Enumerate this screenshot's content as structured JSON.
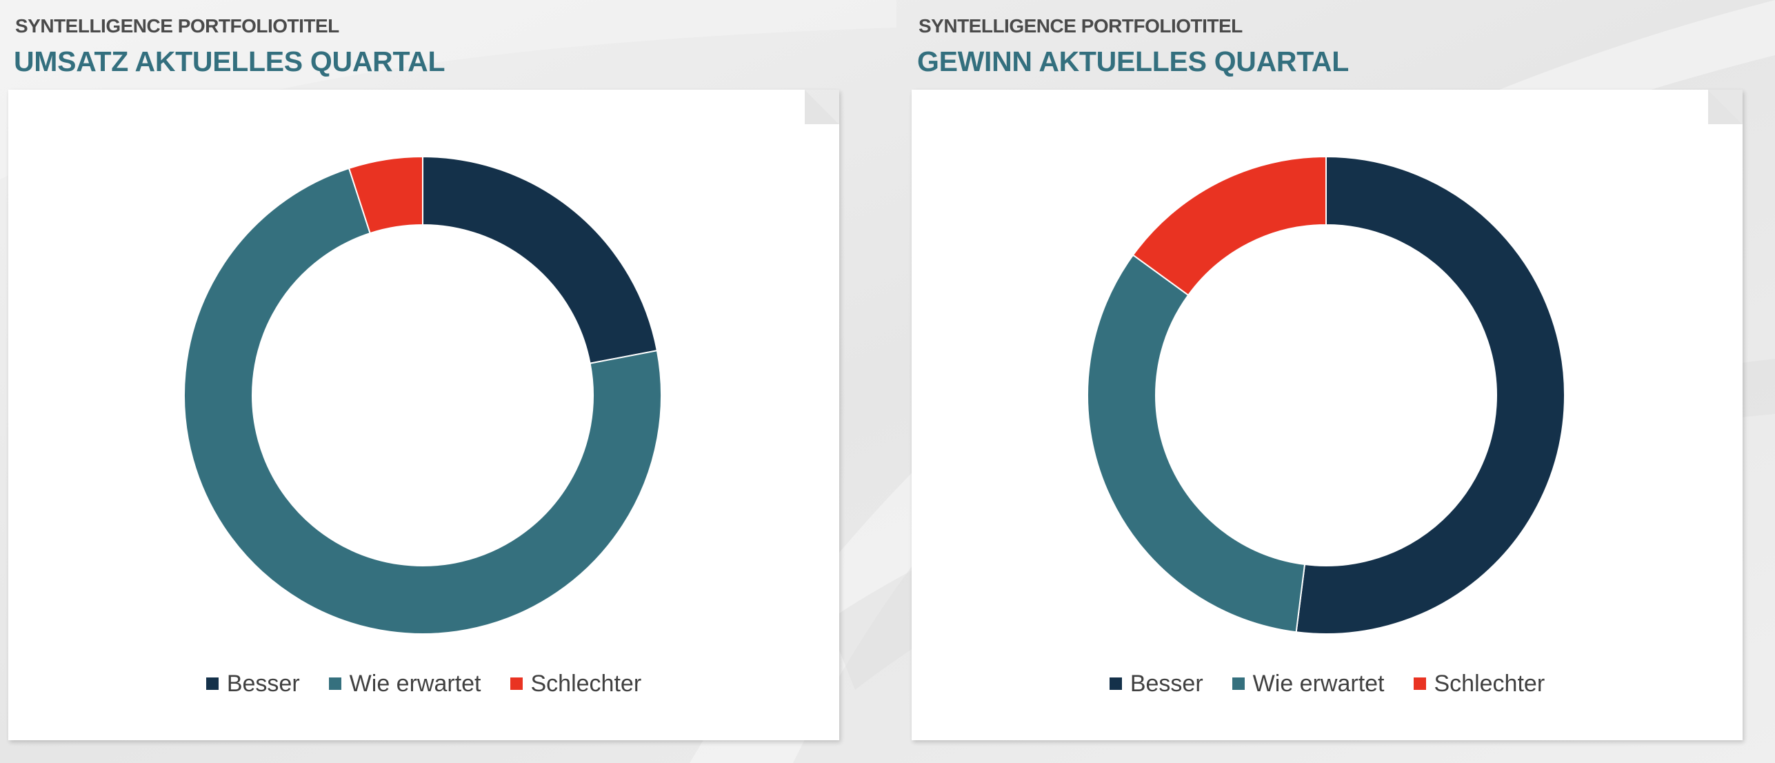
{
  "colors": {
    "besser": "#14314a",
    "wie_erwartet": "#35707e",
    "schlechter": "#e93322",
    "title": "#336f7e"
  },
  "left": {
    "subtitle": "SYNTELLIGENCE PORTFOLIOTITEL",
    "title": "UMSATZ AKTUELLES QUARTAL"
  },
  "right": {
    "subtitle": "SYNTELLIGENCE PORTFOLIOTITEL",
    "title": "GEWINN AKTUELLES QUARTAL"
  },
  "chart_data": [
    {
      "type": "pie",
      "variant": "donut",
      "categories": [
        "Besser",
        "Wie erwartet",
        "Schlechter"
      ],
      "values": [
        22,
        73,
        5
      ],
      "colors": [
        "#14314a",
        "#35707e",
        "#e93322"
      ],
      "start_angle_deg": 0,
      "legend_position": "bottom"
    },
    {
      "type": "pie",
      "variant": "donut",
      "categories": [
        "Besser",
        "Wie erwartet",
        "Schlechter"
      ],
      "values": [
        52,
        33,
        15
      ],
      "colors": [
        "#14314a",
        "#35707e",
        "#e93322"
      ],
      "start_angle_deg": 0,
      "legend_position": "bottom"
    }
  ]
}
